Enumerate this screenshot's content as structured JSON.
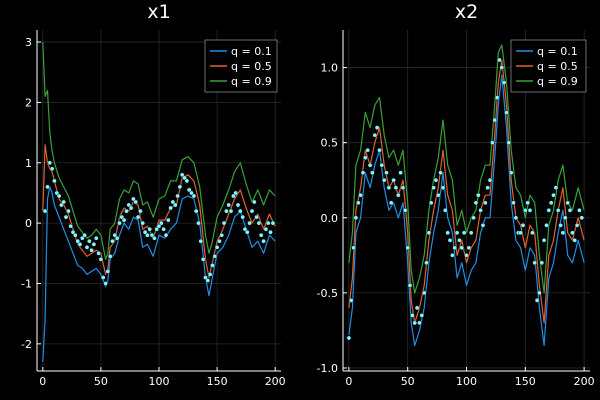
{
  "chart_data": [
    {
      "type": "line",
      "title": "x1",
      "xlabel": "",
      "ylabel": "",
      "xlim": [
        -5,
        205
      ],
      "ylim": [
        -2.45,
        3.2
      ],
      "xticks": [
        "0",
        "50",
        "100",
        "150",
        "200"
      ],
      "xtick_values": [
        0,
        50,
        100,
        150,
        200
      ],
      "yticks": [
        "-2",
        "-1",
        "0",
        "1",
        "2",
        "3"
      ],
      "ytick_values": [
        -2,
        -1,
        0,
        1,
        2,
        3
      ],
      "grid": true,
      "legend_position": "top-right",
      "series": [
        {
          "name": "q = 0.1",
          "color": "#1f8fe6",
          "x": [
            0,
            2,
            4,
            6,
            8,
            10,
            14,
            18,
            22,
            26,
            30,
            34,
            38,
            42,
            46,
            50,
            54,
            56,
            58,
            62,
            66,
            70,
            74,
            78,
            82,
            86,
            90,
            95,
            100,
            105,
            110,
            115,
            120,
            125,
            130,
            135,
            140,
            143,
            146,
            150,
            155,
            160,
            165,
            170,
            175,
            180,
            185,
            190,
            195,
            200
          ],
          "y": [
            -2.3,
            -1.6,
            0.4,
            0.6,
            0.5,
            0.3,
            0.1,
            -0.1,
            -0.3,
            -0.5,
            -0.7,
            -0.75,
            -0.85,
            -0.8,
            -0.75,
            -0.85,
            -1.05,
            -0.95,
            -0.6,
            -0.5,
            -0.2,
            0.0,
            -0.1,
            0.1,
            0.05,
            -0.4,
            -0.35,
            -0.55,
            -0.2,
            -0.25,
            -0.1,
            0.0,
            0.4,
            0.45,
            0.4,
            0.0,
            -0.9,
            -1.2,
            -0.9,
            -0.5,
            -0.4,
            -0.2,
            0.1,
            0.2,
            -0.1,
            -0.4,
            -0.3,
            -0.5,
            -0.2,
            -0.3
          ]
        },
        {
          "name": "q = 0.5",
          "color": "#e2622f",
          "x": [
            0,
            2,
            4,
            6,
            8,
            10,
            14,
            18,
            22,
            26,
            30,
            34,
            38,
            42,
            46,
            50,
            54,
            56,
            58,
            62,
            66,
            70,
            74,
            78,
            82,
            86,
            90,
            95,
            100,
            105,
            110,
            115,
            120,
            125,
            130,
            135,
            140,
            143,
            146,
            150,
            155,
            160,
            165,
            170,
            175,
            180,
            185,
            190,
            195,
            200
          ],
          "y": [
            0.2,
            1.3,
            1.0,
            0.9,
            0.85,
            0.7,
            0.4,
            0.3,
            0.15,
            -0.1,
            -0.35,
            -0.45,
            -0.55,
            -0.5,
            -0.45,
            -0.5,
            -0.85,
            -0.75,
            -0.4,
            -0.3,
            0.1,
            0.25,
            0.2,
            0.35,
            0.3,
            -0.1,
            -0.05,
            -0.25,
            0.05,
            0.05,
            0.25,
            0.3,
            0.75,
            0.8,
            0.7,
            0.3,
            -0.6,
            -0.9,
            -0.65,
            -0.3,
            -0.1,
            0.15,
            0.4,
            0.55,
            0.25,
            0.0,
            0.15,
            -0.1,
            0.15,
            -0.05
          ]
        },
        {
          "name": "q = 0.9",
          "color": "#3aa13a",
          "x": [
            0,
            2,
            4,
            6,
            8,
            10,
            14,
            18,
            22,
            26,
            30,
            34,
            38,
            42,
            46,
            50,
            54,
            56,
            58,
            62,
            66,
            70,
            74,
            78,
            82,
            86,
            90,
            95,
            100,
            105,
            110,
            115,
            120,
            125,
            130,
            135,
            140,
            143,
            146,
            150,
            155,
            160,
            165,
            170,
            175,
            180,
            185,
            190,
            195,
            200
          ],
          "y": [
            3.0,
            2.1,
            2.2,
            1.5,
            1.2,
            1.0,
            0.75,
            0.6,
            0.45,
            0.2,
            -0.05,
            -0.15,
            -0.25,
            -0.2,
            -0.1,
            -0.2,
            -0.6,
            -0.5,
            -0.1,
            0.0,
            0.4,
            0.55,
            0.5,
            0.7,
            0.65,
            0.3,
            0.35,
            0.1,
            0.4,
            0.45,
            0.7,
            0.7,
            1.05,
            1.1,
            1.0,
            0.6,
            -0.2,
            -0.5,
            -0.3,
            0.1,
            0.3,
            0.55,
            0.85,
            1.0,
            0.65,
            0.35,
            0.55,
            0.3,
            0.55,
            0.45
          ]
        },
        {
          "name": "points",
          "color": "#7ff6ff",
          "x": [
            2,
            4,
            6,
            8,
            10,
            12,
            14,
            16,
            18,
            20,
            22,
            24,
            26,
            28,
            30,
            32,
            34,
            36,
            38,
            40,
            42,
            44,
            46,
            48,
            50,
            52,
            54,
            56,
            58,
            60,
            62,
            64,
            66,
            68,
            70,
            72,
            74,
            76,
            78,
            80,
            82,
            84,
            86,
            88,
            90,
            92,
            94,
            96,
            98,
            100,
            102,
            104,
            106,
            108,
            110,
            112,
            114,
            116,
            118,
            120,
            122,
            124,
            126,
            128,
            130,
            132,
            134,
            136,
            138,
            140,
            142,
            144,
            146,
            148,
            150,
            152,
            154,
            156,
            158,
            160,
            162,
            164,
            166,
            168,
            170,
            172,
            174,
            176,
            178,
            180,
            182,
            184,
            186,
            188,
            190,
            192,
            194,
            196,
            198
          ],
          "y": [
            0.2,
            0.6,
            1.0,
            0.9,
            0.7,
            0.5,
            0.45,
            0.3,
            0.35,
            0.1,
            0.2,
            -0.05,
            -0.15,
            -0.2,
            -0.3,
            -0.35,
            -0.25,
            -0.2,
            -0.4,
            -0.3,
            -0.45,
            -0.35,
            -0.25,
            -0.5,
            -0.6,
            -0.9,
            -1.0,
            -0.8,
            -0.55,
            -0.3,
            -0.2,
            -0.25,
            0.0,
            0.1,
            0.05,
            0.2,
            0.3,
            0.25,
            0.4,
            0.35,
            0.1,
            0.2,
            0.0,
            -0.15,
            -0.2,
            -0.1,
            -0.2,
            -0.25,
            -0.1,
            -0.05,
            0.0,
            -0.1,
            -0.2,
            0.05,
            0.25,
            0.35,
            0.3,
            0.45,
            0.6,
            0.8,
            0.75,
            0.7,
            0.55,
            0.5,
            0.45,
            0.2,
            0.0,
            -0.3,
            -0.6,
            -0.9,
            -0.95,
            -0.85,
            -0.7,
            -0.55,
            -0.4,
            -0.3,
            -0.2,
            0.0,
            0.2,
            0.3,
            0.2,
            0.45,
            0.5,
            0.3,
            0.2,
            0.1,
            -0.1,
            -0.15,
            0.0,
            0.2,
            0.35,
            0.1,
            0.0,
            -0.2,
            -0.3,
            -0.1,
            0.0,
            -0.15,
            0.0
          ]
        }
      ]
    },
    {
      "type": "line",
      "title": "x2",
      "xlabel": "",
      "ylabel": "",
      "xlim": [
        -5,
        205
      ],
      "ylim": [
        -1.02,
        1.25
      ],
      "xticks": [
        "0",
        "50",
        "100",
        "150",
        "200"
      ],
      "xtick_values": [
        0,
        50,
        100,
        150,
        200
      ],
      "yticks": [
        "-1.0",
        "-0.5",
        "0.0",
        "0.5",
        "1.0"
      ],
      "ytick_values": [
        -1.0,
        -0.5,
        0.0,
        0.5,
        1.0
      ],
      "grid": true,
      "legend_position": "top-right",
      "series": [
        {
          "name": "q = 0.1",
          "color": "#1f8fe6",
          "x": [
            0,
            3,
            6,
            10,
            14,
            18,
            22,
            26,
            30,
            34,
            38,
            42,
            46,
            50,
            53,
            56,
            60,
            64,
            68,
            72,
            76,
            80,
            84,
            88,
            92,
            96,
            100,
            104,
            108,
            112,
            116,
            120,
            124,
            127,
            130,
            134,
            138,
            142,
            146,
            150,
            154,
            158,
            162,
            166,
            170,
            174,
            178,
            182,
            186,
            190,
            195,
            200
          ],
          "y": [
            -0.78,
            -0.6,
            -0.1,
            0.0,
            0.3,
            0.2,
            0.35,
            0.45,
            0.2,
            0.05,
            0.1,
            0.0,
            0.1,
            -0.3,
            -0.7,
            -0.85,
            -0.75,
            -0.6,
            -0.3,
            -0.1,
            0.05,
            0.3,
            0.0,
            -0.1,
            -0.4,
            -0.3,
            -0.45,
            -0.35,
            -0.3,
            -0.1,
            0.0,
            0.0,
            0.4,
            0.75,
            0.95,
            0.6,
            0.1,
            -0.15,
            -0.2,
            -0.35,
            -0.2,
            -0.25,
            -0.6,
            -0.85,
            -0.4,
            -0.3,
            -0.1,
            0.05,
            -0.25,
            -0.3,
            -0.15,
            -0.3
          ]
        },
        {
          "name": "q = 0.5",
          "color": "#e2622f",
          "x": [
            0,
            3,
            6,
            10,
            14,
            18,
            22,
            26,
            30,
            34,
            38,
            42,
            46,
            50,
            53,
            56,
            60,
            64,
            68,
            72,
            76,
            80,
            84,
            88,
            92,
            96,
            100,
            104,
            108,
            112,
            116,
            120,
            124,
            127,
            130,
            134,
            138,
            142,
            146,
            150,
            154,
            158,
            162,
            166,
            170,
            174,
            178,
            182,
            186,
            190,
            195,
            200
          ],
          "y": [
            -0.6,
            -0.4,
            0.05,
            0.2,
            0.45,
            0.35,
            0.5,
            0.6,
            0.35,
            0.2,
            0.25,
            0.15,
            0.25,
            -0.1,
            -0.55,
            -0.7,
            -0.6,
            -0.45,
            -0.15,
            0.05,
            0.2,
            0.45,
            0.15,
            0.05,
            -0.25,
            -0.15,
            -0.3,
            -0.2,
            -0.15,
            0.05,
            0.15,
            0.15,
            0.55,
            0.9,
            1.05,
            0.75,
            0.25,
            0.0,
            -0.05,
            -0.2,
            -0.05,
            -0.1,
            -0.45,
            -0.7,
            -0.25,
            -0.15,
            0.05,
            0.2,
            -0.1,
            -0.15,
            0.0,
            -0.15
          ]
        },
        {
          "name": "q = 0.9",
          "color": "#3aa13a",
          "x": [
            0,
            3,
            6,
            10,
            14,
            18,
            22,
            26,
            30,
            34,
            38,
            42,
            46,
            50,
            53,
            56,
            60,
            64,
            68,
            72,
            76,
            80,
            84,
            88,
            92,
            96,
            100,
            104,
            108,
            112,
            116,
            120,
            124,
            127,
            130,
            134,
            138,
            142,
            146,
            150,
            154,
            158,
            162,
            166,
            170,
            174,
            178,
            182,
            186,
            190,
            195,
            200
          ],
          "y": [
            -0.3,
            -0.1,
            0.35,
            0.45,
            0.7,
            0.6,
            0.75,
            0.8,
            0.55,
            0.4,
            0.45,
            0.35,
            0.45,
            0.1,
            -0.35,
            -0.5,
            -0.4,
            -0.25,
            0.05,
            0.25,
            0.4,
            0.65,
            0.35,
            0.25,
            -0.05,
            0.05,
            -0.1,
            0.0,
            0.05,
            0.25,
            0.35,
            0.35,
            0.75,
            1.1,
            1.15,
            0.9,
            0.45,
            0.2,
            0.15,
            0.0,
            0.15,
            0.1,
            -0.25,
            -0.5,
            -0.05,
            0.05,
            0.25,
            0.35,
            0.1,
            0.05,
            0.2,
            0.05
          ]
        },
        {
          "name": "points",
          "color": "#7ff6ff",
          "x": [
            0,
            2,
            4,
            6,
            8,
            10,
            12,
            14,
            16,
            18,
            20,
            22,
            24,
            26,
            28,
            30,
            32,
            34,
            36,
            38,
            40,
            42,
            44,
            46,
            48,
            50,
            52,
            54,
            56,
            58,
            60,
            62,
            64,
            66,
            68,
            70,
            72,
            74,
            76,
            78,
            80,
            82,
            84,
            86,
            88,
            90,
            92,
            94,
            96,
            98,
            100,
            102,
            104,
            106,
            108,
            110,
            112,
            114,
            116,
            118,
            120,
            122,
            124,
            126,
            128,
            130,
            132,
            134,
            136,
            138,
            140,
            142,
            144,
            146,
            148,
            150,
            152,
            154,
            156,
            158,
            160,
            162,
            164,
            166,
            168,
            170,
            172,
            174,
            176,
            178,
            180,
            182,
            184,
            186,
            188,
            190,
            192,
            194,
            196,
            198
          ],
          "y": [
            -0.8,
            -0.55,
            -0.2,
            0.0,
            0.1,
            0.15,
            0.3,
            0.4,
            0.45,
            0.35,
            0.3,
            0.55,
            0.6,
            0.45,
            0.35,
            0.25,
            0.3,
            0.2,
            0.1,
            0.25,
            0.2,
            0.15,
            0.3,
            0.2,
            0.05,
            -0.2,
            -0.45,
            -0.65,
            -0.7,
            -0.6,
            -0.7,
            -0.65,
            -0.5,
            -0.3,
            -0.1,
            0.1,
            0.2,
            0.25,
            0.15,
            0.3,
            0.2,
            0.05,
            -0.1,
            -0.15,
            -0.25,
            -0.2,
            -0.1,
            -0.15,
            -0.2,
            -0.1,
            -0.25,
            -0.2,
            -0.1,
            0.0,
            0.1,
            0.15,
            0.05,
            -0.05,
            0.1,
            0.2,
            0.25,
            0.5,
            0.65,
            0.8,
            1.05,
            1.0,
            0.9,
            0.7,
            0.5,
            0.3,
            0.1,
            0.0,
            -0.1,
            -0.1,
            -0.05,
            0.05,
            0.1,
            0.05,
            -0.1,
            -0.3,
            -0.55,
            -0.5,
            -0.3,
            -0.15,
            -0.05,
            0.05,
            0.1,
            0.15,
            0.2,
            0.05,
            -0.05,
            -0.1,
            0.0,
            0.1,
            0.05,
            -0.1,
            -0.15,
            -0.05,
            0.05,
            0.0
          ]
        }
      ]
    }
  ]
}
